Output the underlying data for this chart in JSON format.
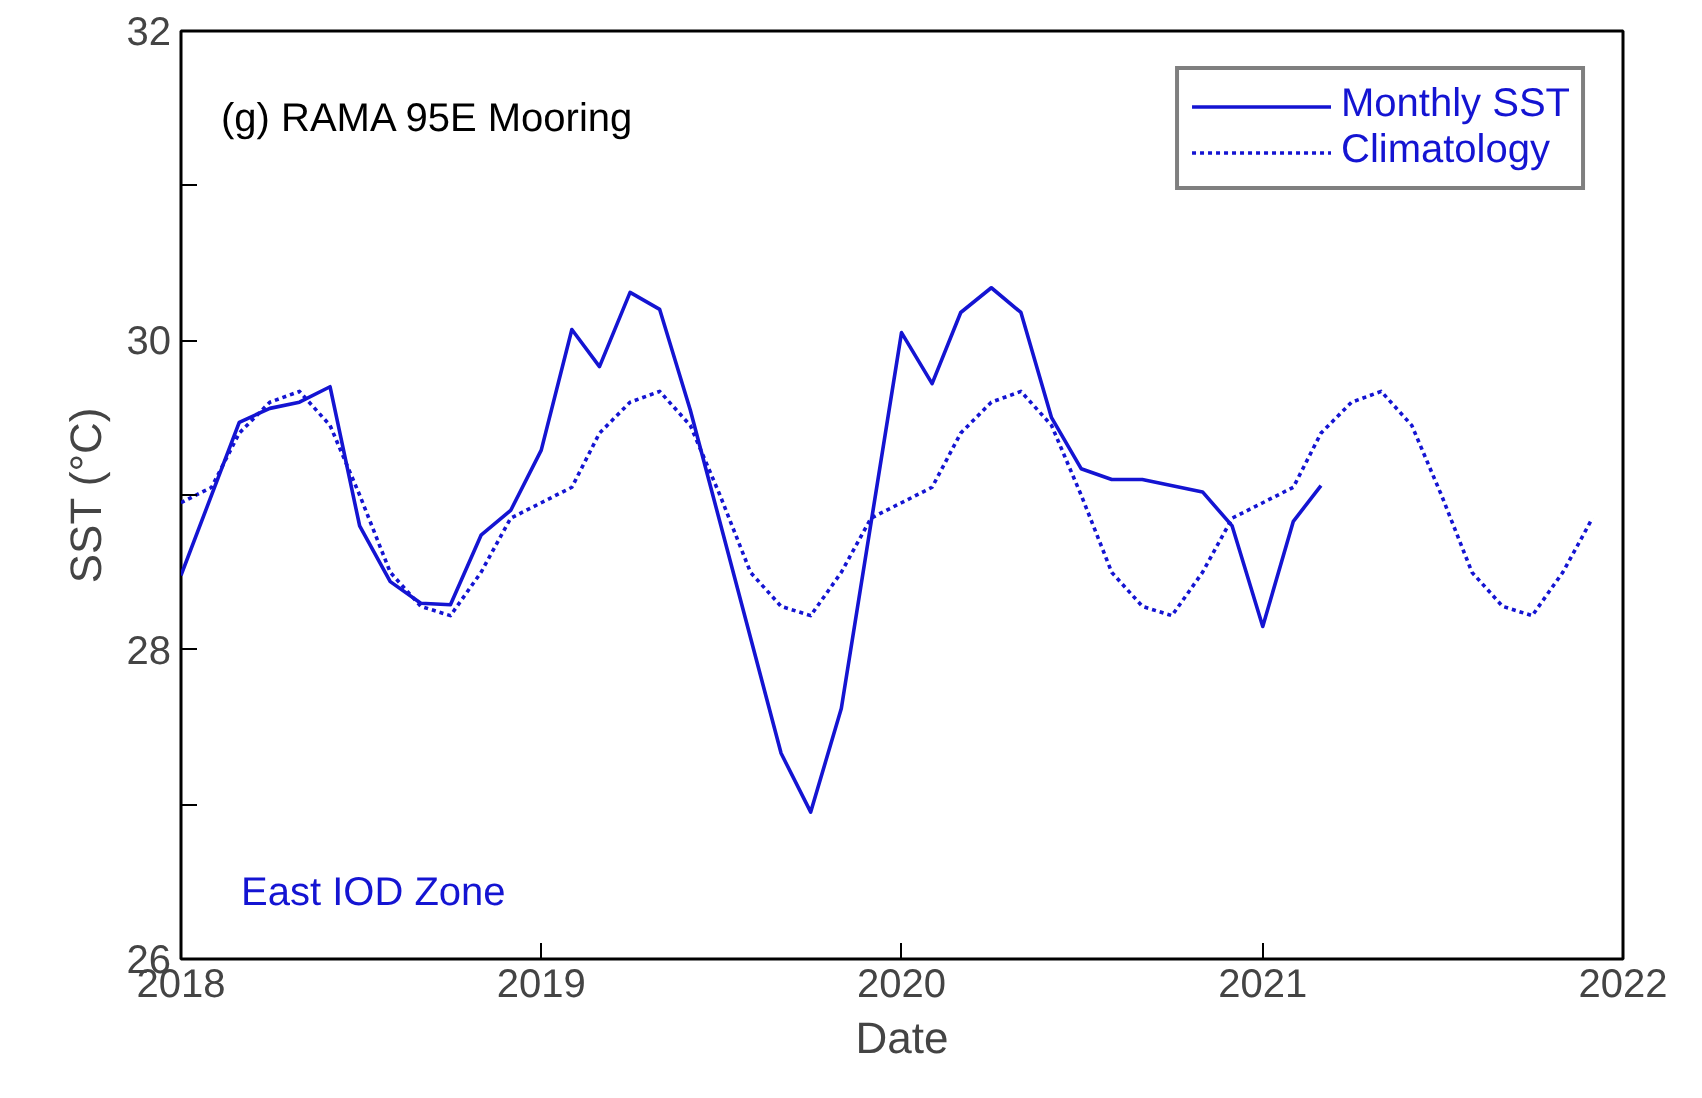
{
  "chart_data": {
    "type": "line",
    "xlabel": "Date",
    "ylabel": "SST (°C)",
    "annotations": [
      "(g) RAMA 95E Mooring",
      "East IOD Zone"
    ],
    "xlim": [
      "2018",
      "2022"
    ],
    "xticks": [
      {
        "value": "2018",
        "label": "2018"
      },
      {
        "value": "2019",
        "label": "2019"
      },
      {
        "value": "2020",
        "label": "2020"
      },
      {
        "value": "2021",
        "label": "2021"
      },
      {
        "value": "2022",
        "label": "2022"
      }
    ],
    "ylim": [
      26,
      32
    ],
    "yticks": [
      26,
      {
        "value": 27,
        "label": null
      },
      28,
      {
        "value": 29,
        "label": null
      },
      30,
      {
        "value": 31,
        "label": null
      },
      32
    ],
    "grid": false,
    "legend": "top right",
    "marker": "none",
    "series": [
      {
        "name": "Monthly SST",
        "color": "#1414d2",
        "line_style": "solid",
        "x": [
          "2018-01",
          "2018-03",
          "2018-04",
          "2018-05",
          "2018-06",
          "2018-07",
          "2018-08",
          "2018-09",
          "2018-10",
          "2018-11",
          "2018-12",
          "2019-01",
          "2019-02",
          "2019-03",
          "2019-04",
          "2019-05",
          "2019-06",
          "2019-09",
          "2019-10",
          "2019-11",
          "2020-01",
          "2020-02",
          "2020-03",
          "2020-04",
          "2020-05",
          "2020-06",
          "2020-07",
          "2020-08",
          "2020-09",
          "2020-11",
          "2020-12",
          "2021-01",
          "2021-02",
          "2021-03"
        ],
        "values": [
          28.48,
          29.47,
          29.56,
          29.6,
          29.7,
          28.8,
          28.44,
          28.3,
          28.29,
          28.74,
          28.9,
          29.29,
          30.07,
          29.83,
          30.31,
          30.2,
          29.55,
          27.33,
          26.95,
          27.62,
          30.05,
          29.72,
          30.18,
          30.34,
          30.18,
          29.5,
          29.17,
          29.1,
          29.1,
          29.02,
          28.8,
          28.15,
          28.83,
          29.06
        ]
      },
      {
        "name": "Climatology",
        "color": "#1414d2",
        "line_style": "dotted",
        "x": [
          "2018-01",
          "2018-02",
          "2018-03",
          "2018-04",
          "2018-05",
          "2018-06",
          "2018-07",
          "2018-08",
          "2018-09",
          "2018-10",
          "2018-11",
          "2018-12",
          "2019-01",
          "2019-02",
          "2019-03",
          "2019-04",
          "2019-05",
          "2019-06",
          "2019-07",
          "2019-08",
          "2019-09",
          "2019-10",
          "2019-11",
          "2019-12",
          "2020-01",
          "2020-02",
          "2020-03",
          "2020-04",
          "2020-05",
          "2020-06",
          "2020-07",
          "2020-08",
          "2020-09",
          "2020-10",
          "2020-11",
          "2020-12",
          "2021-01",
          "2021-02",
          "2021-03",
          "2021-04",
          "2021-05",
          "2021-06",
          "2021-07",
          "2021-08",
          "2021-09",
          "2021-10",
          "2021-11",
          "2021-12"
        ],
        "values": [
          28.95,
          29.05,
          29.4,
          29.6,
          29.67,
          29.45,
          29.0,
          28.5,
          28.28,
          28.22,
          28.5,
          28.85,
          28.95,
          29.05,
          29.4,
          29.6,
          29.67,
          29.45,
          29.0,
          28.5,
          28.28,
          28.22,
          28.5,
          28.85,
          28.95,
          29.05,
          29.4,
          29.6,
          29.67,
          29.45,
          29.0,
          28.5,
          28.28,
          28.22,
          28.5,
          28.85,
          28.95,
          29.05,
          29.4,
          29.6,
          29.67,
          29.45,
          29.0,
          28.5,
          28.28,
          28.22,
          28.5,
          28.85
        ]
      }
    ]
  }
}
